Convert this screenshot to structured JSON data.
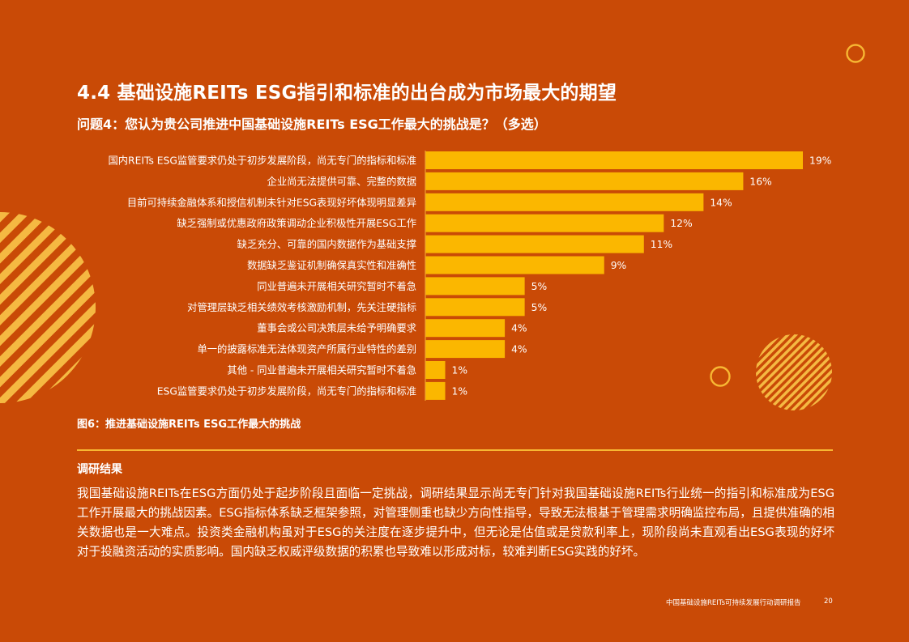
{
  "section_title": "4.4 基础设施REITs ESG指引和标准的出台成为市场最大的期望",
  "question": "问题4：您认为贵公司推进中国基础设施REITs ESG工作最大的挑战是？（多选）",
  "figure_caption": "图6：推进基础设施REITs ESG工作最大的挑战",
  "findings": {
    "heading": "调研结果",
    "body": "我国基础设施REITs在ESG方面仍处于起步阶段且面临一定挑战，调研结果显示尚无专门针对我国基础设施REITs行业统一的指引和标准成为ESG工作开展最大的挑战因素。ESG指标体系缺乏框架参照，对管理侧重也缺少方向性指导，导致无法根基于管理需求明确监控布局，且提供准确的相关数据也是一大难点。投资类金融机构虽对于ESG的关注度在逐步提升中，但无论是估值或是贷款利率上，现阶段尚未直观看出ESG表现的好坏对于投融资活动的实质影响。国内缺乏权威评级数据的积累也导致难以形成对标，较难判断ESG实践的好坏。"
  },
  "footer": {
    "report_title": "中国基础设施REITs可持续发展行动调研报告",
    "page_number": "20"
  },
  "colors": {
    "background": "#c94a06",
    "bar": "#fbb700",
    "accent": "#f7b733"
  },
  "chart_data": {
    "type": "bar",
    "orientation": "horizontal",
    "categories": [
      "国内REITs ESG监管要求仍处于初步发展阶段，尚无专门的指标和标准",
      "企业尚无法提供可靠、完整的数据",
      "目前可持续金融体系和授信机制未针对ESG表现好坏体现明显差异",
      "缺乏强制或优惠政府政策调动企业积极性开展ESG工作",
      "缺乏充分、可靠的国内数据作为基础支撑",
      "数据缺乏鉴证机制确保真实性和准确性",
      "同业普遍未开展相关研究暂时不着急",
      "对管理层缺乏相关绩效考核激励机制，先关注硬指标",
      "董事会或公司决策层未给予明确要求",
      "单一的披露标准无法体现资产所属行业特性的差别",
      "其他 - 同业普遍未开展相关研究暂时不着急",
      "ESG监管要求仍处于初步发展阶段，尚无专门的指标和标准"
    ],
    "values": [
      19,
      16,
      14,
      12,
      11,
      9,
      5,
      5,
      4,
      4,
      1,
      1
    ],
    "value_labels": [
      "19%",
      "16%",
      "14%",
      "12%",
      "11%",
      "9%",
      "5%",
      "5%",
      "4%",
      "4%",
      "1%",
      "1%"
    ],
    "unit": "%",
    "xlim": [
      0,
      19
    ],
    "grid": false,
    "legend": "none"
  }
}
